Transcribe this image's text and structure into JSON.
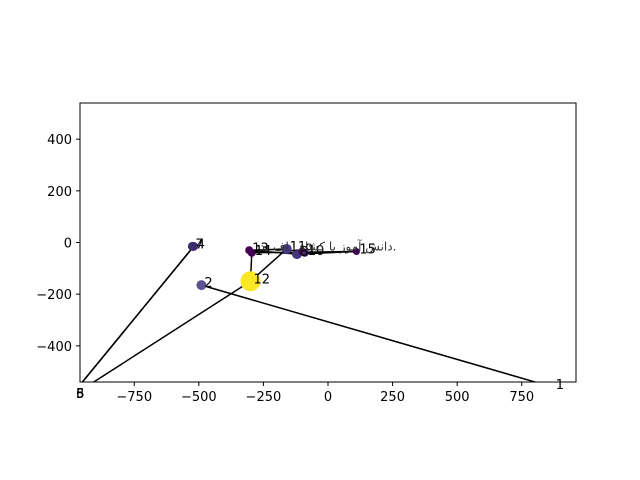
{
  "chart_data": {
    "type": "scatter",
    "title": "",
    "xlabel": "",
    "ylabel": "",
    "xlim": [
      -960,
      960
    ],
    "ylim": [
      -540,
      540
    ],
    "x_ticks": [
      -750,
      -500,
      -250,
      0,
      250,
      500,
      750
    ],
    "x_tick_labels": [
      "−750",
      "−500",
      "−250",
      "0",
      "250",
      "500",
      "750"
    ],
    "y_ticks": [
      -400,
      -200,
      0,
      200,
      400
    ],
    "y_tick_labels": [
      "−400",
      "−200",
      "0",
      "200",
      "400"
    ],
    "grid": false,
    "points": [
      {
        "label": "1",
        "x": 870,
        "y": -560,
        "color": "#440154",
        "size": 4
      },
      {
        "label": "2",
        "x": -490,
        "y": -165,
        "color": "#5b5392",
        "size": 5
      },
      {
        "label": "3",
        "x": -1000,
        "y": -600,
        "color": "#440154",
        "size": 4
      },
      {
        "label": "4",
        "x": -520,
        "y": -15,
        "color": "#482878",
        "size": 4.5
      },
      {
        "label": "5",
        "x": -1000,
        "y": -600,
        "color": "#440154",
        "size": 4
      },
      {
        "label": "6",
        "x": -1000,
        "y": -600,
        "color": "#440154",
        "size": 4
      },
      {
        "label": "7",
        "x": -525,
        "y": -15,
        "color": "#3b2c70",
        "size": 4.5
      },
      {
        "label": "8",
        "x": -120,
        "y": -45,
        "color": "#46337e",
        "size": 5
      },
      {
        "label": "9",
        "x": -100,
        "y": -35,
        "color": "#440154",
        "size": 4
      },
      {
        "label": "10",
        "x": -90,
        "y": -40,
        "color": "#482475",
        "size": 4
      },
      {
        "label": "11",
        "x": -160,
        "y": -25,
        "color": "#453781",
        "size": 5
      },
      {
        "label": "12",
        "x": -300,
        "y": -150,
        "color": "#fde725",
        "size": 10
      },
      {
        "label": "13",
        "x": -305,
        "y": -30,
        "color": "#440154",
        "size": 4
      },
      {
        "label": "14",
        "x": -295,
        "y": -40,
        "color": "#440154",
        "size": 4
      },
      {
        "label": "15",
        "x": 110,
        "y": -35,
        "color": "#440154",
        "size": 3.5
      }
    ],
    "path_order": [
      "2",
      "1",
      "3",
      "4",
      "5",
      "12",
      "14",
      "15",
      "8",
      "13",
      "11",
      "12"
    ],
    "annotation": {
      "text": "دانش آموز با کشاف اف ید.",
      "x": 0,
      "y": -30
    }
  }
}
